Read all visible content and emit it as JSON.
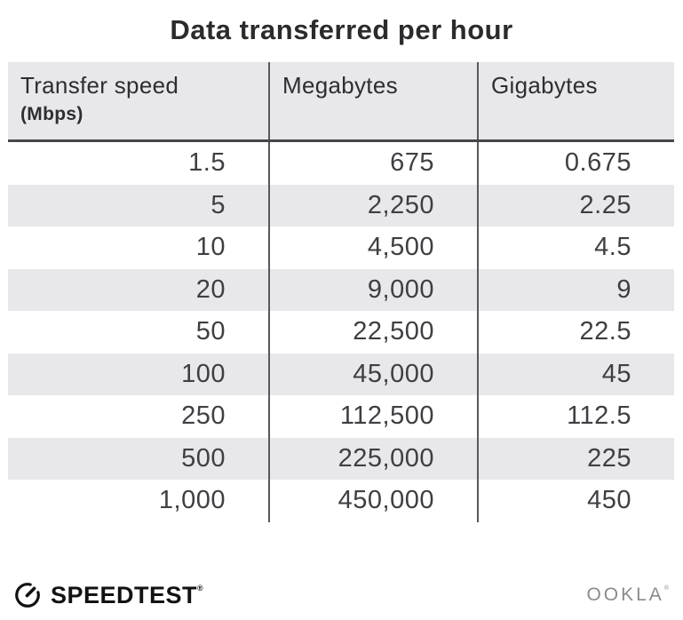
{
  "title": "Data transferred per hour",
  "table": {
    "headers": [
      {
        "label": "Transfer speed",
        "sub": "(Mbps)"
      },
      {
        "label": "Megabytes"
      },
      {
        "label": "Gigabytes"
      }
    ],
    "rows": [
      [
        "1.5",
        "675",
        "0.675"
      ],
      [
        "5",
        "2,250",
        "2.25"
      ],
      [
        "10",
        "4,500",
        "4.5"
      ],
      [
        "20",
        "9,000",
        "9"
      ],
      [
        "50",
        "22,500",
        "22.5"
      ],
      [
        "100",
        "45,000",
        "45"
      ],
      [
        "250",
        "112,500",
        "112.5"
      ],
      [
        "500",
        "225,000",
        "225"
      ],
      [
        "1,000",
        "450,000",
        "450"
      ]
    ]
  },
  "footer": {
    "speedtest_label": "SPEEDTEST",
    "speedtest_reg": "®",
    "ookla_label": "OOKLA",
    "ookla_reg": "®"
  },
  "colors": {
    "stripe": "#e8e7ea",
    "column_divider": "#59585c",
    "header_underline": "#47464a",
    "text_dark": "#2e2d30",
    "number_gray": "#3f3e42",
    "ookla_gray": "#8b8b8b"
  },
  "chart_data": {
    "type": "table",
    "title": "Data transferred per hour",
    "columns": [
      "Transfer speed (Mbps)",
      "Megabytes",
      "Gigabytes"
    ],
    "rows": [
      [
        1.5,
        675,
        0.675
      ],
      [
        5,
        2250,
        2.25
      ],
      [
        10,
        4500,
        4.5
      ],
      [
        20,
        9000,
        9
      ],
      [
        50,
        22500,
        22.5
      ],
      [
        100,
        45000,
        45
      ],
      [
        250,
        112500,
        112.5
      ],
      [
        500,
        225000,
        225
      ],
      [
        1000,
        450000,
        450
      ]
    ]
  }
}
